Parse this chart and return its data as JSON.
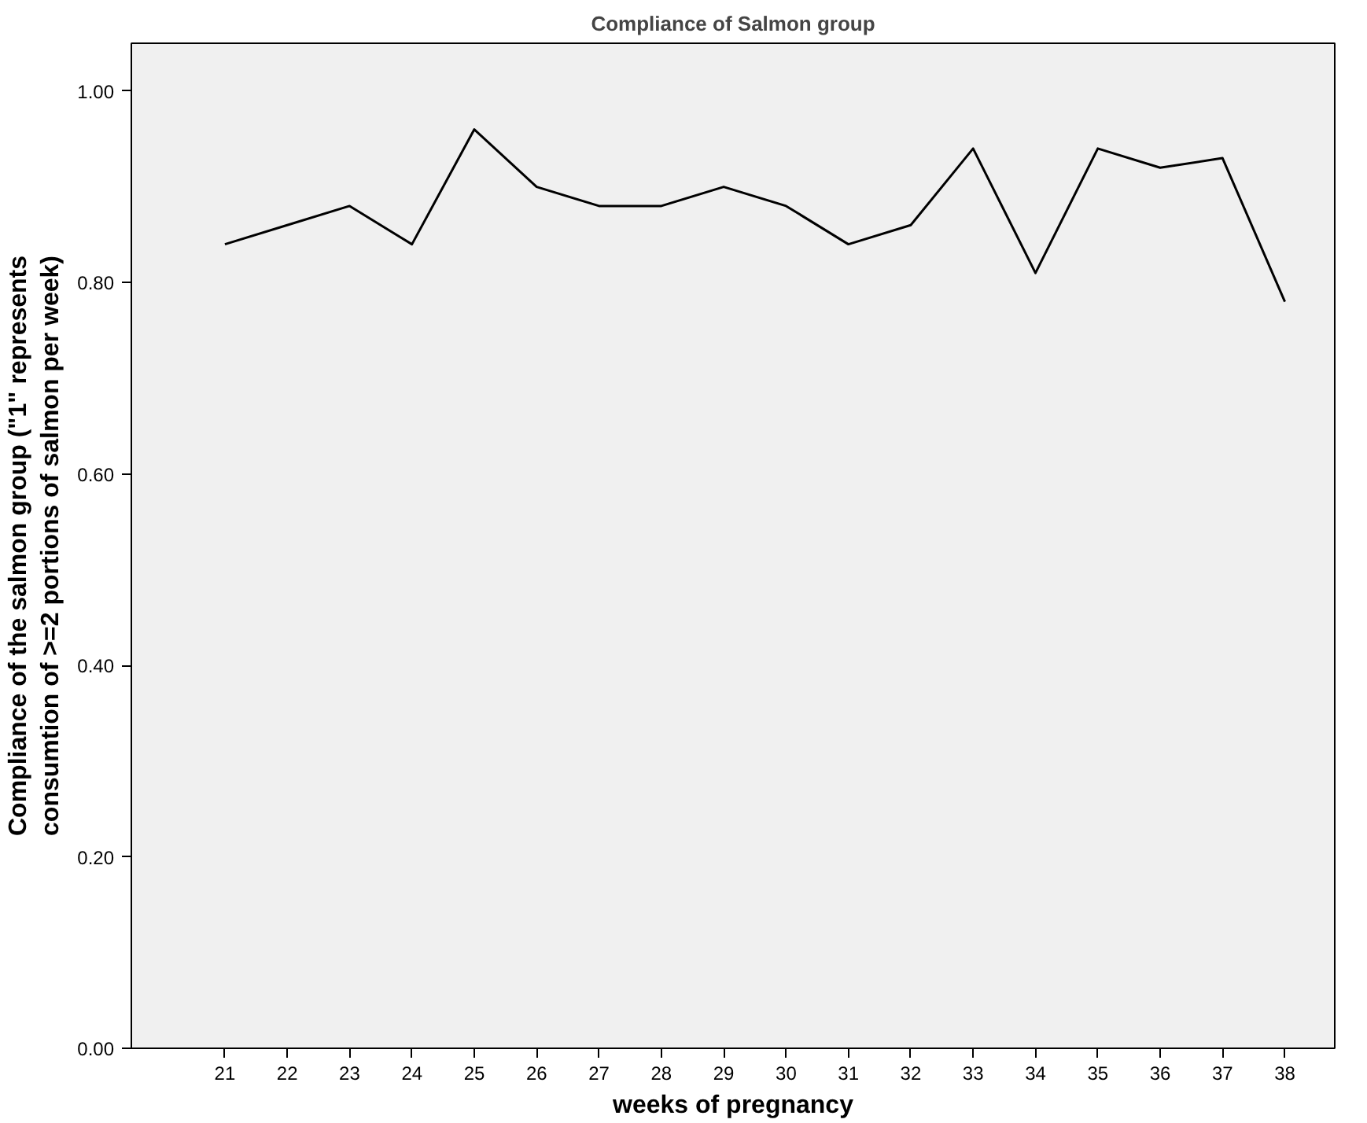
{
  "chart_data": {
    "type": "line",
    "title": "Compliance of Salmon group",
    "xlabel": "weeks of pregnancy",
    "ylabel": "Compliance of the salmon group (\"1\" represents\nconsumtion of >=2 portions of salmon per week)",
    "x": [
      21,
      22,
      23,
      24,
      25,
      26,
      27,
      28,
      29,
      30,
      31,
      32,
      33,
      34,
      35,
      36,
      37,
      38
    ],
    "series": [
      {
        "color": "#000000",
        "values": [
          0.84,
          0.86,
          0.88,
          0.84,
          0.96,
          0.9,
          0.88,
          0.88,
          0.9,
          0.88,
          0.84,
          0.86,
          0.94,
          0.81,
          0.94,
          0.92,
          0.93,
          0.78
        ]
      }
    ],
    "xlim": [
      19.5,
      38.8
    ],
    "xticks": [
      21,
      22,
      23,
      24,
      25,
      26,
      27,
      28,
      29,
      30,
      31,
      32,
      33,
      34,
      35,
      36,
      37,
      38
    ],
    "ylim": [
      0,
      1.05
    ],
    "yticks": [
      {
        "value": 0,
        "label": "0.00"
      },
      {
        "value": 0.2,
        "label": "0.20"
      },
      {
        "value": 0.4,
        "label": "0.40"
      },
      {
        "value": 0.6,
        "label": "0.60"
      },
      {
        "value": 0.8,
        "label": "0.80"
      },
      {
        "value": 1.0,
        "label": "1.00"
      }
    ],
    "grid": false,
    "marker": "none",
    "line_style": "solid"
  }
}
